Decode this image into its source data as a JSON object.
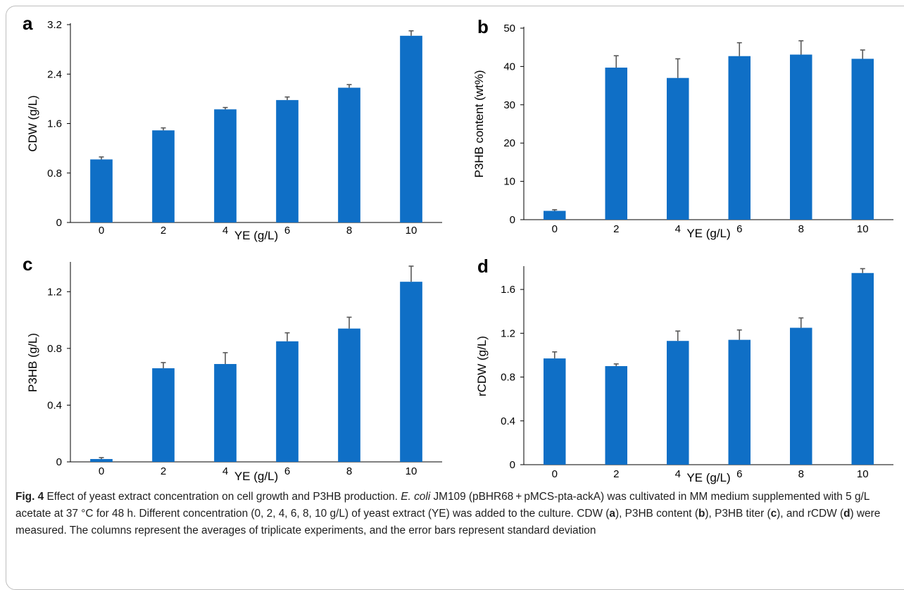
{
  "style": {
    "bar_color": "#0f6fc6",
    "error_bar_color": "#595959",
    "axis_color": "#000000"
  },
  "chart_data": [
    {
      "type": "bar",
      "panel_label": "a",
      "categories": [
        "0",
        "2",
        "4",
        "6",
        "8",
        "10"
      ],
      "values": [
        1.02,
        1.49,
        1.83,
        1.98,
        2.18,
        3.02
      ],
      "errors": [
        0.04,
        0.04,
        0.03,
        0.05,
        0.05,
        0.08
      ],
      "xlabel": "YE (g/L)",
      "ylabel": "CDW (g/L)",
      "ylim": [
        0,
        3.2
      ],
      "yticks": [
        "0",
        "0.8",
        "1.6",
        "2.4",
        "3.2"
      ],
      "ytick_values": [
        0,
        0.8,
        1.6,
        2.4,
        3.2
      ],
      "grid": false
    },
    {
      "type": "bar",
      "panel_label": "b",
      "categories": [
        "0",
        "2",
        "4",
        "6",
        "8",
        "10"
      ],
      "values": [
        2.3,
        39.7,
        37,
        42.7,
        43.1,
        42
      ],
      "errors": [
        0.3,
        3.1,
        5,
        3.5,
        3.6,
        2.3
      ],
      "xlabel": "YE (g/L)",
      "ylabel": "P3HB content (wt%)",
      "ylim": [
        0,
        50
      ],
      "yticks": [
        "0",
        "10",
        "20",
        "30",
        "40",
        "50"
      ],
      "ytick_values": [
        0,
        10,
        20,
        30,
        40,
        50
      ],
      "grid": false
    },
    {
      "type": "bar",
      "panel_label": "c",
      "categories": [
        "0",
        "2",
        "4",
        "6",
        "8",
        "10"
      ],
      "values": [
        0.02,
        0.66,
        0.69,
        0.85,
        0.94,
        1.27
      ],
      "errors": [
        0.01,
        0.04,
        0.08,
        0.06,
        0.08,
        0.11
      ],
      "xlabel": "YE (g/L)",
      "ylabel": "P3HB (g/L)",
      "ylim": [
        0,
        1.4
      ],
      "yticks": [
        "0",
        "0.4",
        "0.8",
        "1.2"
      ],
      "ytick_values": [
        0,
        0.4,
        0.8,
        1.2
      ],
      "grid": false
    },
    {
      "type": "bar",
      "panel_label": "d",
      "categories": [
        "0",
        "2",
        "4",
        "6",
        "8",
        "10"
      ],
      "values": [
        0.97,
        0.9,
        1.13,
        1.14,
        1.25,
        1.75
      ],
      "errors": [
        0.06,
        0.02,
        0.09,
        0.09,
        0.09,
        0.04
      ],
      "xlabel": "YE (g/L)",
      "ylabel": "rCDW (g/L)",
      "ylim": [
        0,
        1.8
      ],
      "yticks": [
        "0",
        "0.4",
        "0.8",
        "1.2",
        "1.6"
      ],
      "ytick_values": [
        0,
        0.4,
        0.8,
        1.2,
        1.6
      ],
      "grid": false
    }
  ],
  "caption": {
    "fig_label": "Fig. 4",
    "t1": "  Effect of yeast extract concentration on cell growth and P3HB production. ",
    "t2": "E. coli",
    "t3": " JM109 (pBHR68 + pMCS-pta-ackA) was cultivated in MM medium supplemented with 5 g/L acetate at 37 °C for 48 h. Different concentration (0, 2, 4, 6, 8, 10 g/L) of yeast extract (YE) was added to the culture. CDW (",
    "t4": "a",
    "t5": "), P3HB content (",
    "t6": "b",
    "t7": "), P3HB titer (",
    "t8": "c",
    "t9": "), and rCDW (",
    "t10": "d",
    "t11": ") were measured. The columns represent the averages of triplicate experiments, and the error bars represent standard deviation"
  }
}
